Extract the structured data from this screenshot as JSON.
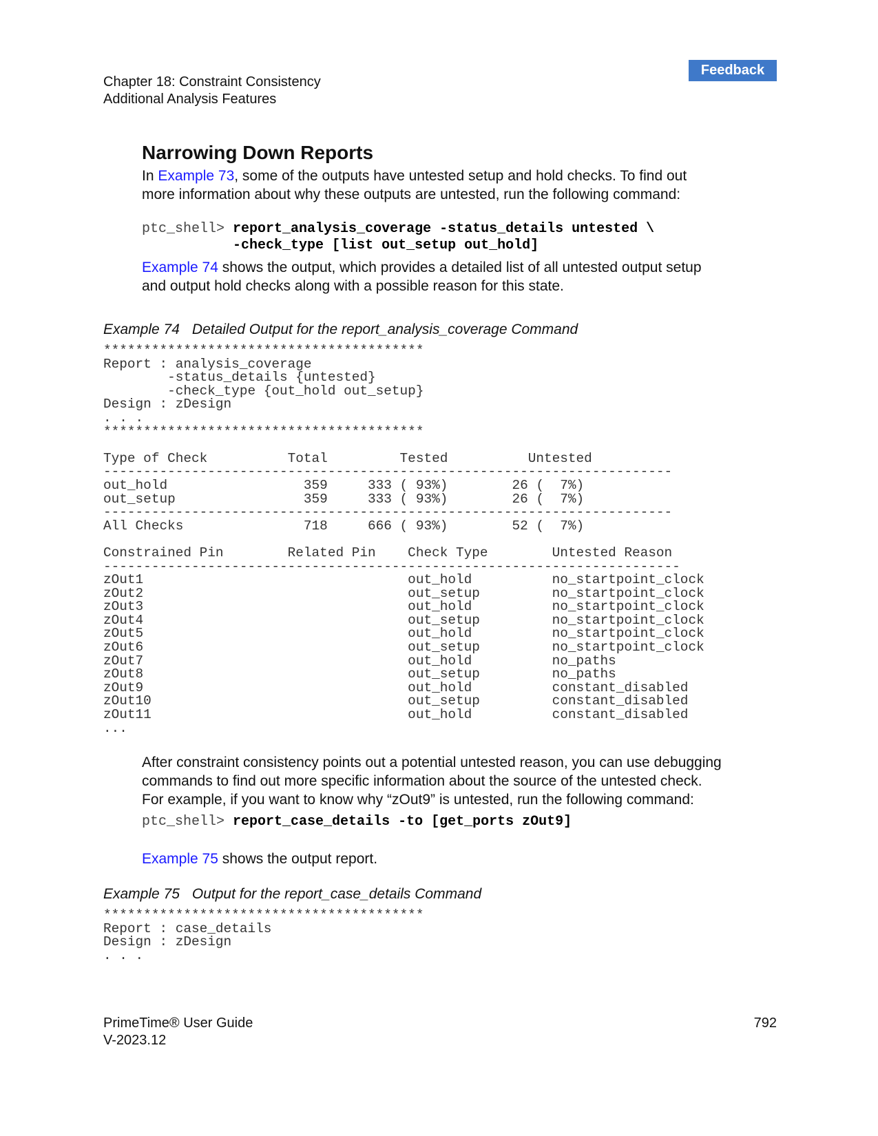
{
  "header": {
    "chapter": "Chapter 18: Constraint Consistency",
    "section": "Additional Analysis Features",
    "feedback_button": "Feedback"
  },
  "heading": "Narrowing Down Reports",
  "para1": {
    "prefix": "In ",
    "link": "Example 73",
    "line1_rest": ", some of the outputs have untested setup and hold checks. To find out",
    "line2": "more information about why these outputs are untested, run the following command:"
  },
  "cmd1": {
    "prompt": "ptc_shell> ",
    "line1_bold": "report_analysis_coverage -status_details untested \\",
    "line2_indent": "           ",
    "line2_bold": "-check_type [list out_setup out_hold]"
  },
  "para2": {
    "link": "Example 74",
    "line1_rest": " shows the output, which provides a detailed list of all untested output setup",
    "line2": "and output hold checks along with a possible reason for this state."
  },
  "example74": {
    "number": "Example 74",
    "title": "Detailed Output for the report_analysis_coverage Command",
    "code_lines": [
      "****************************************",
      "Report : analysis_coverage",
      "        -status_details {untested}",
      "        -check_type {out_hold out_setup}",
      "Design : zDesign",
      ". . .",
      "****************************************",
      "",
      "Type of Check          Total         Tested          Untested",
      "-----------------------------------------------------------------------",
      "out_hold                 359     333 ( 93%)        26 (  7%)",
      "out_setup                359     333 ( 93%)        26 (  7%)",
      "-----------------------------------------------------------------------",
      "All Checks               718     666 ( 93%)        52 (  7%)",
      "",
      "Constrained Pin        Related Pin    Check Type        Untested Reason",
      "------------------------------------------------------------------------",
      "zOut1                                 out_hold          no_startpoint_clock",
      "zOut2                                 out_setup         no_startpoint_clock",
      "zOut3                                 out_hold          no_startpoint_clock",
      "zOut4                                 out_setup         no_startpoint_clock",
      "zOut5                                 out_hold          no_startpoint_clock",
      "zOut6                                 out_setup         no_startpoint_clock",
      "zOut7                                 out_hold          no_paths",
      "zOut8                                 out_setup         no_paths",
      "zOut9                                 out_hold          constant_disabled",
      "zOut10                                out_setup         constant_disabled",
      "zOut11                                out_hold          constant_disabled",
      "..."
    ]
  },
  "para3": {
    "line1": "After constraint consistency points out a potential untested reason, you can use debugging",
    "line2": "commands to find out more specific information about the source of the untested check.",
    "line3": "For example, if you want to know why “zOut9” is untested, run the following command:"
  },
  "cmd2": {
    "prompt": "ptc_shell> ",
    "bold": "report_case_details -to [get_ports zOut9]"
  },
  "para4": {
    "link": "Example 75",
    "rest": " shows the output report."
  },
  "example75": {
    "number": "Example 75",
    "title": "Output for the report_case_details Command",
    "code_lines": [
      "****************************************",
      "Report : case_details",
      "Design : zDesign",
      ". . ."
    ]
  },
  "footer": {
    "guide": "PrimeTime® User Guide",
    "version": "V-2023.12",
    "page": "792"
  }
}
